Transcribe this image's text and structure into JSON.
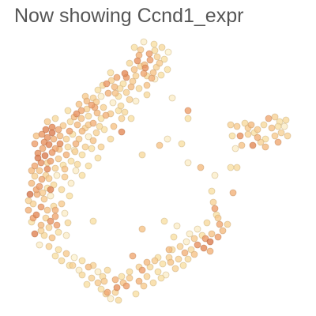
{
  "title": "Now showing Ccnd1_expr",
  "chart_data": {
    "type": "scatter",
    "title": "Now showing Ccnd1_expr",
    "xlabel": "",
    "ylabel": "",
    "grid": false,
    "legend": "none",
    "axes_visible": false,
    "colormap": [
      "#fdf7d2",
      "#f9e0a4",
      "#f6c387",
      "#ee9f6b",
      "#e08252",
      "#cc6a44"
    ],
    "scale_note": "points colored by expression level (0 = low, 1 = high)",
    "points": [
      [
        182,
        53,
        0.15
      ],
      [
        195,
        56,
        0.2
      ],
      [
        205,
        60,
        0.25
      ],
      [
        213,
        66,
        0.1
      ],
      [
        208,
        75,
        0.2
      ],
      [
        199,
        72,
        0.3
      ],
      [
        189,
        68,
        0.6
      ],
      [
        178,
        63,
        0.35
      ],
      [
        174,
        77,
        0.7
      ],
      [
        183,
        82,
        0.45
      ],
      [
        198,
        85,
        0.3
      ],
      [
        204,
        95,
        0.2
      ],
      [
        192,
        99,
        0.5
      ],
      [
        182,
        93,
        0.55
      ],
      [
        170,
        88,
        0.4
      ],
      [
        164,
        80,
        0.25
      ],
      [
        158,
        93,
        0.75
      ],
      [
        148,
        98,
        0.55
      ],
      [
        141,
        102,
        0.3
      ],
      [
        135,
        106,
        0.65
      ],
      [
        145,
        110,
        0.45
      ],
      [
        156,
        106,
        0.2
      ],
      [
        168,
        103,
        0.35
      ],
      [
        176,
        112,
        0.25
      ],
      [
        186,
        108,
        0.4
      ],
      [
        160,
        117,
        0.3
      ],
      [
        150,
        122,
        0.2
      ],
      [
        137,
        118,
        0.5
      ],
      [
        128,
        122,
        0.15
      ],
      [
        122,
        129,
        0.35
      ],
      [
        116,
        133,
        0.6
      ],
      [
        110,
        138,
        0.3
      ],
      [
        103,
        140,
        0.55
      ],
      [
        97,
        144,
        0.7
      ],
      [
        103,
        150,
        0.4
      ],
      [
        112,
        147,
        0.25
      ],
      [
        123,
        143,
        0.45
      ],
      [
        131,
        136,
        0.3
      ],
      [
        143,
        130,
        0.15
      ],
      [
        153,
        134,
        0.25
      ],
      [
        140,
        144,
        0.35
      ],
      [
        128,
        150,
        0.2
      ],
      [
        118,
        156,
        0.5
      ],
      [
        108,
        162,
        0.3
      ],
      [
        98,
        158,
        0.45
      ],
      [
        89,
        154,
        0.25
      ],
      [
        80,
        159,
        0.35
      ],
      [
        74,
        164,
        0.55
      ],
      [
        66,
        161,
        0.75
      ],
      [
        58,
        164,
        0.8
      ],
      [
        53,
        170,
        0.65
      ],
      [
        60,
        174,
        0.7
      ],
      [
        68,
        176,
        0.5
      ],
      [
        76,
        172,
        0.45
      ],
      [
        84,
        176,
        0.3
      ],
      [
        92,
        170,
        0.2
      ],
      [
        100,
        176,
        0.35
      ],
      [
        112,
        173,
        0.15
      ],
      [
        122,
        168,
        0.3
      ],
      [
        132,
        164,
        0.2
      ],
      [
        144,
        160,
        0.4
      ],
      [
        154,
        167,
        0.75
      ],
      [
        62,
        183,
        0.8
      ],
      [
        54,
        188,
        0.55
      ],
      [
        48,
        194,
        0.7
      ],
      [
        57,
        197,
        0.85
      ],
      [
        66,
        193,
        0.65
      ],
      [
        75,
        189,
        0.4
      ],
      [
        86,
        186,
        0.25
      ],
      [
        95,
        192,
        0.3
      ],
      [
        104,
        196,
        0.2
      ],
      [
        84,
        196,
        0.5
      ],
      [
        74,
        201,
        0.35
      ],
      [
        64,
        204,
        0.6
      ],
      [
        52,
        206,
        0.7
      ],
      [
        44,
        210,
        0.55
      ],
      [
        50,
        216,
        0.4
      ],
      [
        60,
        214,
        0.75
      ],
      [
        70,
        213,
        0.3
      ],
      [
        80,
        209,
        0.2
      ],
      [
        72,
        222,
        0.15
      ],
      [
        62,
        226,
        0.35
      ],
      [
        53,
        227,
        0.55
      ],
      [
        44,
        223,
        0.3
      ],
      [
        40,
        232,
        0.45
      ],
      [
        50,
        236,
        0.6
      ],
      [
        60,
        238,
        0.2
      ],
      [
        68,
        234,
        0.25
      ],
      [
        38,
        246,
        0.9
      ],
      [
        47,
        246,
        0.5
      ],
      [
        56,
        252,
        0.35
      ],
      [
        64,
        248,
        0.15
      ],
      [
        42,
        258,
        0.3
      ],
      [
        52,
        262,
        0.65
      ],
      [
        60,
        266,
        0.4
      ],
      [
        68,
        261,
        0.25
      ],
      [
        36,
        266,
        0.5
      ],
      [
        46,
        272,
        0.75
      ],
      [
        58,
        276,
        0.3
      ],
      [
        70,
        274,
        0.55
      ],
      [
        40,
        281,
        0.2
      ],
      [
        52,
        285,
        0.45
      ],
      [
        62,
        288,
        0.3
      ],
      [
        72,
        285,
        0.6
      ],
      [
        44,
        296,
        0.8
      ],
      [
        56,
        298,
        0.25
      ],
      [
        66,
        301,
        0.4
      ],
      [
        50,
        310,
        0.15
      ],
      [
        62,
        312,
        0.3
      ],
      [
        74,
        316,
        0.2
      ],
      [
        84,
        321,
        0.35
      ],
      [
        94,
        326,
        0.1
      ],
      [
        104,
        330,
        0.2
      ],
      [
        112,
        338,
        0.45
      ],
      [
        104,
        348,
        0.25
      ],
      [
        116,
        352,
        0.3
      ],
      [
        124,
        344,
        0.15
      ],
      [
        132,
        356,
        0.35
      ],
      [
        128,
        366,
        0.2
      ],
      [
        136,
        370,
        0.55
      ],
      [
        148,
        364,
        0.7
      ],
      [
        146,
        354,
        0.5
      ],
      [
        156,
        358,
        0.4
      ],
      [
        164,
        352,
        0.35
      ],
      [
        176,
        356,
        0.5
      ],
      [
        186,
        350,
        0.3
      ],
      [
        180,
        342,
        0.6
      ],
      [
        190,
        338,
        0.25
      ],
      [
        200,
        344,
        0.2
      ],
      [
        210,
        348,
        0.15
      ],
      [
        196,
        330,
        0.35
      ],
      [
        206,
        334,
        0.2
      ],
      [
        216,
        332,
        0.4
      ],
      [
        226,
        328,
        0.3
      ],
      [
        234,
        320,
        0.5
      ],
      [
        242,
        316,
        0.25
      ],
      [
        250,
        310,
        0.7
      ],
      [
        258,
        314,
        0.75
      ],
      [
        266,
        306,
        0.85
      ],
      [
        276,
        300,
        0.6
      ],
      [
        282,
        292,
        0.45
      ],
      [
        288,
        284,
        0.3
      ],
      [
        278,
        284,
        0.55
      ],
      [
        268,
        296,
        0.4
      ],
      [
        256,
        298,
        0.2
      ],
      [
        246,
        302,
        0.35
      ],
      [
        236,
        306,
        0.15
      ],
      [
        228,
        312,
        0.3
      ],
      [
        218,
        316,
        0.25
      ],
      [
        266,
        318,
        0.5
      ],
      [
        272,
        264,
        0.6
      ],
      [
        274,
        272,
        0.2
      ],
      [
        270,
        256,
        0.3
      ],
      [
        240,
        296,
        0.15
      ],
      [
        214,
        316,
        0.45
      ],
      [
        168,
        324,
        0.55
      ],
      [
        154,
        350,
        0.2
      ],
      [
        140,
        378,
        0.15
      ],
      [
        150,
        380,
        0.25
      ],
      [
        134,
        372,
        0.3
      ],
      [
        172,
        372,
        0.2
      ],
      [
        182,
        362,
        0.35
      ],
      [
        194,
        358,
        0.25
      ],
      [
        204,
        352,
        0.2
      ],
      [
        222,
        340,
        0.3
      ],
      [
        232,
        336,
        0.2
      ],
      [
        92,
        336,
        0.3
      ],
      [
        130,
        350,
        0.25
      ],
      [
        208,
        280,
        0.2
      ],
      [
        180,
        290,
        0.4
      ],
      [
        224,
        286,
        0.15
      ],
      [
        238,
        140,
        0.6
      ],
      [
        238,
        150,
        0.2
      ],
      [
        218,
        124,
        0.15
      ],
      [
        212,
        176,
        0.15
      ],
      [
        230,
        182,
        0.2
      ],
      [
        202,
        184,
        0.4
      ],
      [
        180,
        196,
        0.25
      ],
      [
        238,
        206,
        0.15
      ],
      [
        254,
        212,
        0.45
      ],
      [
        292,
        212,
        0.2
      ],
      [
        300,
        212,
        0.25
      ],
      [
        272,
        222,
        0.15
      ],
      [
        268,
        242,
        0.2
      ],
      [
        295,
        244,
        0.5
      ],
      [
        292,
        158,
        0.3
      ],
      [
        300,
        160,
        0.35
      ],
      [
        310,
        156,
        0.25
      ],
      [
        318,
        158,
        0.45
      ],
      [
        326,
        164,
        0.35
      ],
      [
        334,
        158,
        0.25
      ],
      [
        340,
        150,
        0.55
      ],
      [
        348,
        148,
        0.3
      ],
      [
        354,
        154,
        0.2
      ],
      [
        360,
        160,
        0.15
      ],
      [
        356,
        168,
        0.3
      ],
      [
        348,
        172,
        0.35
      ],
      [
        336,
        176,
        0.2
      ],
      [
        326,
        174,
        0.5
      ],
      [
        314,
        170,
        0.3
      ],
      [
        304,
        172,
        0.7
      ],
      [
        294,
        172,
        0.2
      ],
      [
        306,
        184,
        0.4
      ],
      [
        320,
        184,
        0.75
      ],
      [
        336,
        186,
        0.45
      ],
      [
        352,
        180,
        0.55
      ],
      [
        364,
        172,
        0.3
      ],
      [
        344,
        162,
        0.4
      ],
      [
        322,
        168,
        0.2
      ],
      [
        298,
        188,
        0.15
      ],
      [
        330,
        180,
        0.3
      ],
      [
        352,
        160,
        0.2
      ],
      [
        314,
        162,
        0.35
      ],
      [
        362,
        152,
        0.25
      ],
      [
        96,
        216,
        0.15
      ],
      [
        104,
        222,
        0.2
      ],
      [
        82,
        224,
        0.35
      ],
      [
        90,
        232,
        0.15
      ],
      [
        78,
        240,
        0.25
      ],
      [
        88,
        248,
        0.2
      ],
      [
        78,
        258,
        0.35
      ],
      [
        70,
        266,
        0.5
      ],
      [
        82,
        270,
        0.15
      ],
      [
        86,
        282,
        0.25
      ],
      [
        74,
        294,
        0.2
      ],
      [
        84,
        298,
        0.15
      ],
      [
        118,
        280,
        0.2
      ],
      [
        98,
        208,
        0.25
      ],
      [
        112,
        210,
        0.2
      ],
      [
        128,
        186,
        0.3
      ],
      [
        140,
        176,
        0.25
      ],
      [
        118,
        178,
        0.4
      ],
      [
        90,
        204,
        0.2
      ],
      [
        96,
        182,
        0.5
      ],
      [
        108,
        186,
        0.3
      ],
      [
        124,
        200,
        0.2
      ],
      [
        108,
        122,
        0.35
      ],
      [
        158,
        142,
        0.25
      ],
      [
        166,
        150,
        0.2
      ],
      [
        172,
        128,
        0.15
      ],
      [
        186,
        120,
        0.25
      ],
      [
        196,
        100,
        0.15
      ],
      [
        212,
        88,
        0.2
      ],
      [
        166,
        110,
        0.45
      ],
      [
        154,
        150,
        0.3
      ],
      [
        190,
        76,
        0.6
      ],
      [
        176,
        70,
        0.5
      ],
      [
        172,
        96,
        0.3
      ],
      [
        160,
        98,
        0.65
      ],
      [
        152,
        112,
        0.25
      ],
      [
        184,
        86,
        0.7
      ],
      [
        196,
        64,
        0.25
      ],
      [
        170,
        60,
        0.2
      ],
      [
        202,
        80,
        0.35
      ],
      [
        164,
        126,
        0.3
      ],
      [
        150,
        140,
        0.2
      ],
      [
        60,
        154,
        0.35
      ],
      [
        70,
        150,
        0.25
      ],
      [
        46,
        172,
        0.4
      ],
      [
        56,
        180,
        0.7
      ],
      [
        44,
        182,
        0.6
      ],
      [
        48,
        200,
        0.85
      ],
      [
        40,
        216,
        0.45
      ],
      [
        58,
        222,
        0.3
      ],
      [
        46,
        240,
        0.55
      ],
      [
        54,
        244,
        0.35
      ],
      [
        42,
        276,
        0.6
      ],
      [
        52,
        292,
        0.3
      ],
      [
        64,
        280,
        0.7
      ],
      [
        36,
        254,
        0.3
      ],
      [
        64,
        240,
        0.8
      ],
      [
        76,
        182,
        0.75
      ],
      [
        66,
        168,
        0.85
      ],
      [
        88,
        166,
        0.6
      ],
      [
        94,
        148,
        0.45
      ],
      [
        112,
        158,
        0.35
      ],
      [
        126,
        160,
        0.25
      ],
      [
        134,
        146,
        0.5
      ],
      [
        120,
        136,
        0.55
      ],
      [
        100,
        132,
        0.4
      ],
      [
        86,
        140,
        0.2
      ],
      [
        116,
        188,
        0.2
      ],
      [
        104,
        166,
        0.45
      ],
      [
        82,
        214,
        0.4
      ],
      [
        70,
        188,
        0.55
      ],
      [
        60,
        206,
        0.3
      ],
      [
        94,
        190,
        0.15
      ],
      [
        130,
        108,
        0.25
      ],
      [
        140,
        92,
        0.2
      ],
      [
        146,
        118,
        0.4
      ],
      [
        124,
        114,
        0.2
      ],
      [
        118,
        124,
        0.3
      ],
      [
        110,
        128,
        0.45
      ],
      [
        194,
        92,
        0.4
      ],
      [
        186,
        96,
        0.25
      ],
      [
        178,
        84,
        0.3
      ],
      [
        220,
        300,
        0.2
      ],
      [
        250,
        290,
        0.15
      ],
      [
        262,
        282,
        0.25
      ],
      [
        276,
        276,
        0.35
      ],
      [
        260,
        302,
        0.65
      ],
      [
        246,
        322,
        0.4
      ],
      [
        238,
        328,
        0.25
      ],
      [
        214,
        326,
        0.3
      ],
      [
        200,
        326,
        0.2
      ],
      [
        186,
        332,
        0.45
      ],
      [
        176,
        338,
        0.3
      ],
      [
        164,
        344,
        0.25
      ],
      [
        160,
        362,
        0.6
      ],
      [
        146,
        370,
        0.3
      ],
      [
        124,
        358,
        0.35
      ],
      [
        110,
        360,
        0.2
      ],
      [
        136,
        342,
        0.25
      ],
      [
        118,
        336,
        0.3
      ],
      [
        100,
        342,
        0.15
      ],
      [
        88,
        336,
        0.2
      ],
      [
        78,
        330,
        0.25
      ],
      [
        70,
        324,
        0.2
      ]
    ]
  }
}
